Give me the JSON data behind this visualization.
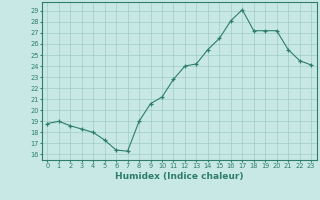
{
  "x": [
    0,
    1,
    2,
    3,
    4,
    5,
    6,
    7,
    8,
    9,
    10,
    11,
    12,
    13,
    14,
    15,
    16,
    17,
    18,
    19,
    20,
    21,
    22,
    23
  ],
  "y": [
    18.8,
    19.0,
    18.6,
    18.3,
    18.0,
    17.3,
    16.4,
    16.3,
    19.0,
    20.6,
    21.2,
    22.8,
    24.0,
    24.2,
    25.5,
    26.5,
    28.1,
    29.1,
    27.2,
    27.2,
    27.2,
    25.5,
    24.5,
    24.1
  ],
  "line_color": "#2e7d6e",
  "marker": "+",
  "bg_color": "#c8e8e5",
  "grid_color": "#a0ccc8",
  "xlabel": "Humidex (Indice chaleur)",
  "ylabel_ticks": [
    16,
    17,
    18,
    19,
    20,
    21,
    22,
    23,
    24,
    25,
    26,
    27,
    28,
    29
  ],
  "xlim": [
    -0.5,
    23.5
  ],
  "ylim": [
    15.5,
    29.8
  ],
  "tick_color": "#2e7d6e",
  "label_fontsize": 6.5
}
